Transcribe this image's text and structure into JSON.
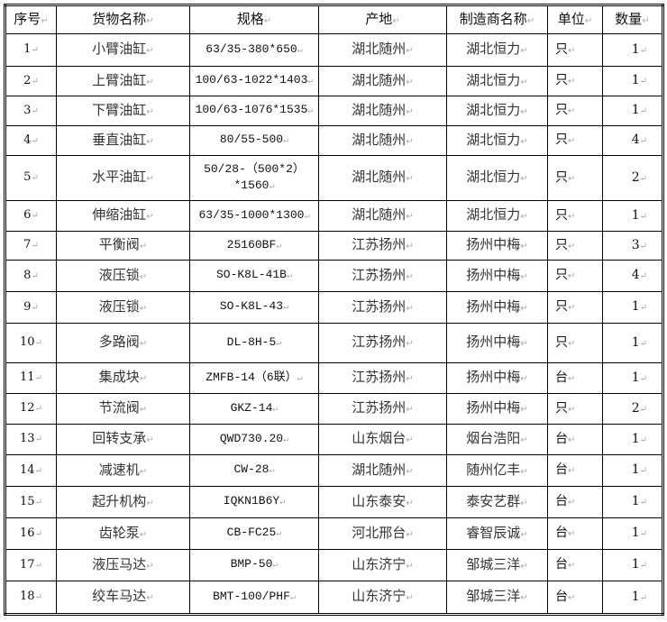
{
  "headers": [
    "序号",
    "货物名称",
    "规格",
    "产地",
    "制造商名称",
    "单位",
    "数量"
  ],
  "rows": [
    [
      "1",
      "小臂油缸",
      "63/35-380*650",
      "湖北随州",
      "湖北恒力",
      "只",
      "1"
    ],
    [
      "2",
      "上臂油缸",
      "100/63-1022*1403",
      "湖北随州",
      "湖北恒力",
      "只",
      "1"
    ],
    [
      "3",
      "下臂油缸",
      "100/63-1076*1535",
      "湖北随州",
      "湖北恒力",
      "只",
      "1"
    ],
    [
      "4",
      "垂直油缸",
      "80/55-500",
      "湖北随州",
      "湖北恒力",
      "只",
      "4"
    ],
    [
      "5",
      "水平油缸",
      "50/28-（500*2）*1560",
      "湖北随州",
      "湖北恒力",
      "只",
      "2"
    ],
    [
      "6",
      "伸缩油缸",
      "63/35-1000*1300",
      "湖北随州",
      "湖北恒力",
      "只",
      "1"
    ],
    [
      "7",
      "平衡阀",
      "25160BF",
      "江苏扬州",
      "扬州中梅",
      "只",
      "3"
    ],
    [
      "8",
      "液压锁",
      "SO-K8L-41B",
      "江苏扬州",
      "扬州中梅",
      "只",
      "4"
    ],
    [
      "9",
      "液压锁",
      "SO-K8L-43",
      "江苏扬州",
      "扬州中梅",
      "只",
      "1"
    ],
    [
      "10",
      "多路阀",
      "DL-8H-5",
      "江苏扬州",
      "扬州中梅",
      "只",
      "1"
    ],
    [
      "11",
      "集成块",
      "ZMFB-14（6联）",
      "江苏扬州",
      "扬州中梅",
      "台",
      "1"
    ],
    [
      "12",
      "节流阀",
      "GKZ-14",
      "江苏扬州",
      "扬州中梅",
      "只",
      "2"
    ],
    [
      "13",
      "回转支承",
      "QWD730.20",
      "山东烟台",
      "烟台浩阳",
      "台",
      "1"
    ],
    [
      "14",
      "减速机",
      "CW-28",
      "湖北随州",
      "随州亿丰",
      "台",
      "1"
    ],
    [
      "15",
      "起升机构",
      "IQKN1B6Y",
      "山东泰安",
      "泰安艺群",
      "台",
      "1"
    ],
    [
      "16",
      "齿轮泵",
      "CB-FC25",
      "河北邢台",
      "睿智辰诚",
      "台",
      "1"
    ],
    [
      "17",
      "液压马达",
      "BMP-50",
      "山东济宁",
      "邹城三洋",
      "台",
      "1"
    ],
    [
      "18",
      "绞车马达",
      "BMT-100/PHF",
      "山东济宁",
      "邹城三洋",
      "台",
      "1"
    ]
  ]
}
